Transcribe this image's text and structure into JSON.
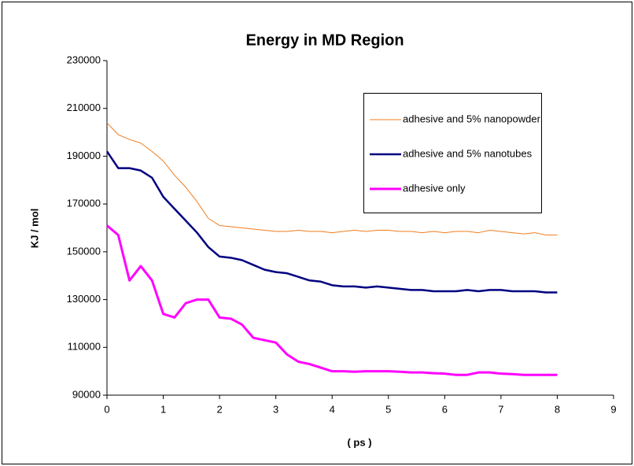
{
  "chart_data": {
    "type": "line",
    "title": "Energy in MD Region",
    "x_label": "( ps )",
    "y_label": "KJ / mol",
    "xlim": [
      0,
      9
    ],
    "xticks": [
      0,
      1,
      2,
      3,
      4,
      5,
      6,
      7,
      8,
      9
    ],
    "ylim": [
      90000,
      230000
    ],
    "yticks": [
      90000,
      110000,
      130000,
      150000,
      170000,
      190000,
      210000,
      230000
    ],
    "grid": false,
    "legend": "upper right",
    "x": [
      0,
      0.2,
      0.4,
      0.6,
      0.8,
      1.0,
      1.2,
      1.4,
      1.6,
      1.8,
      2.0,
      2.2,
      2.4,
      2.6,
      2.8,
      3.0,
      3.2,
      3.4,
      3.6,
      3.8,
      4.0,
      4.2,
      4.4,
      4.6,
      4.8,
      5.0,
      5.2,
      5.4,
      5.6,
      5.8,
      6.0,
      6.2,
      6.4,
      6.6,
      6.8,
      7.0,
      7.2,
      7.4,
      7.6,
      7.8,
      8.0
    ],
    "series": [
      {
        "name": "adhesive and 5% nanopowder",
        "color": "#f07d1e",
        "width": 1,
        "values": [
          204000,
          199000,
          197000,
          195500,
          192000,
          188000,
          182000,
          177000,
          171000,
          164000,
          161000,
          160500,
          160000,
          159500,
          159000,
          158500,
          158500,
          159000,
          158500,
          158500,
          158000,
          158500,
          159000,
          158500,
          159000,
          159000,
          158500,
          158500,
          158000,
          158500,
          158000,
          158500,
          158500,
          158000,
          159000,
          158500,
          158000,
          157500,
          158000,
          157000,
          157000
        ]
      },
      {
        "name": "adhesive and 5% nanotubes",
        "color": "#000080",
        "width": 2.5,
        "values": [
          192000,
          185000,
          185000,
          184000,
          181000,
          173000,
          168000,
          163000,
          158000,
          152000,
          148000,
          147500,
          146500,
          144500,
          142500,
          141500,
          141000,
          139500,
          138000,
          137500,
          136000,
          135500,
          135500,
          135000,
          135500,
          135000,
          134500,
          134000,
          134000,
          133500,
          133500,
          133500,
          134000,
          133500,
          134000,
          134000,
          133500,
          133500,
          133500,
          133000,
          133000
        ]
      },
      {
        "name": "adhesive only",
        "color": "#ff00ff",
        "width": 3,
        "values": [
          161000,
          157000,
          138000,
          144000,
          138000,
          124000,
          122500,
          128500,
          130000,
          130000,
          122500,
          122000,
          119500,
          114000,
          113000,
          112000,
          107000,
          104000,
          103000,
          101500,
          100000,
          100000,
          99800,
          100000,
          100000,
          100000,
          99800,
          99500,
          99500,
          99200,
          99000,
          98500,
          98500,
          99500,
          99500,
          99000,
          98800,
          98500,
          98500,
          98500,
          98500
        ]
      }
    ]
  }
}
